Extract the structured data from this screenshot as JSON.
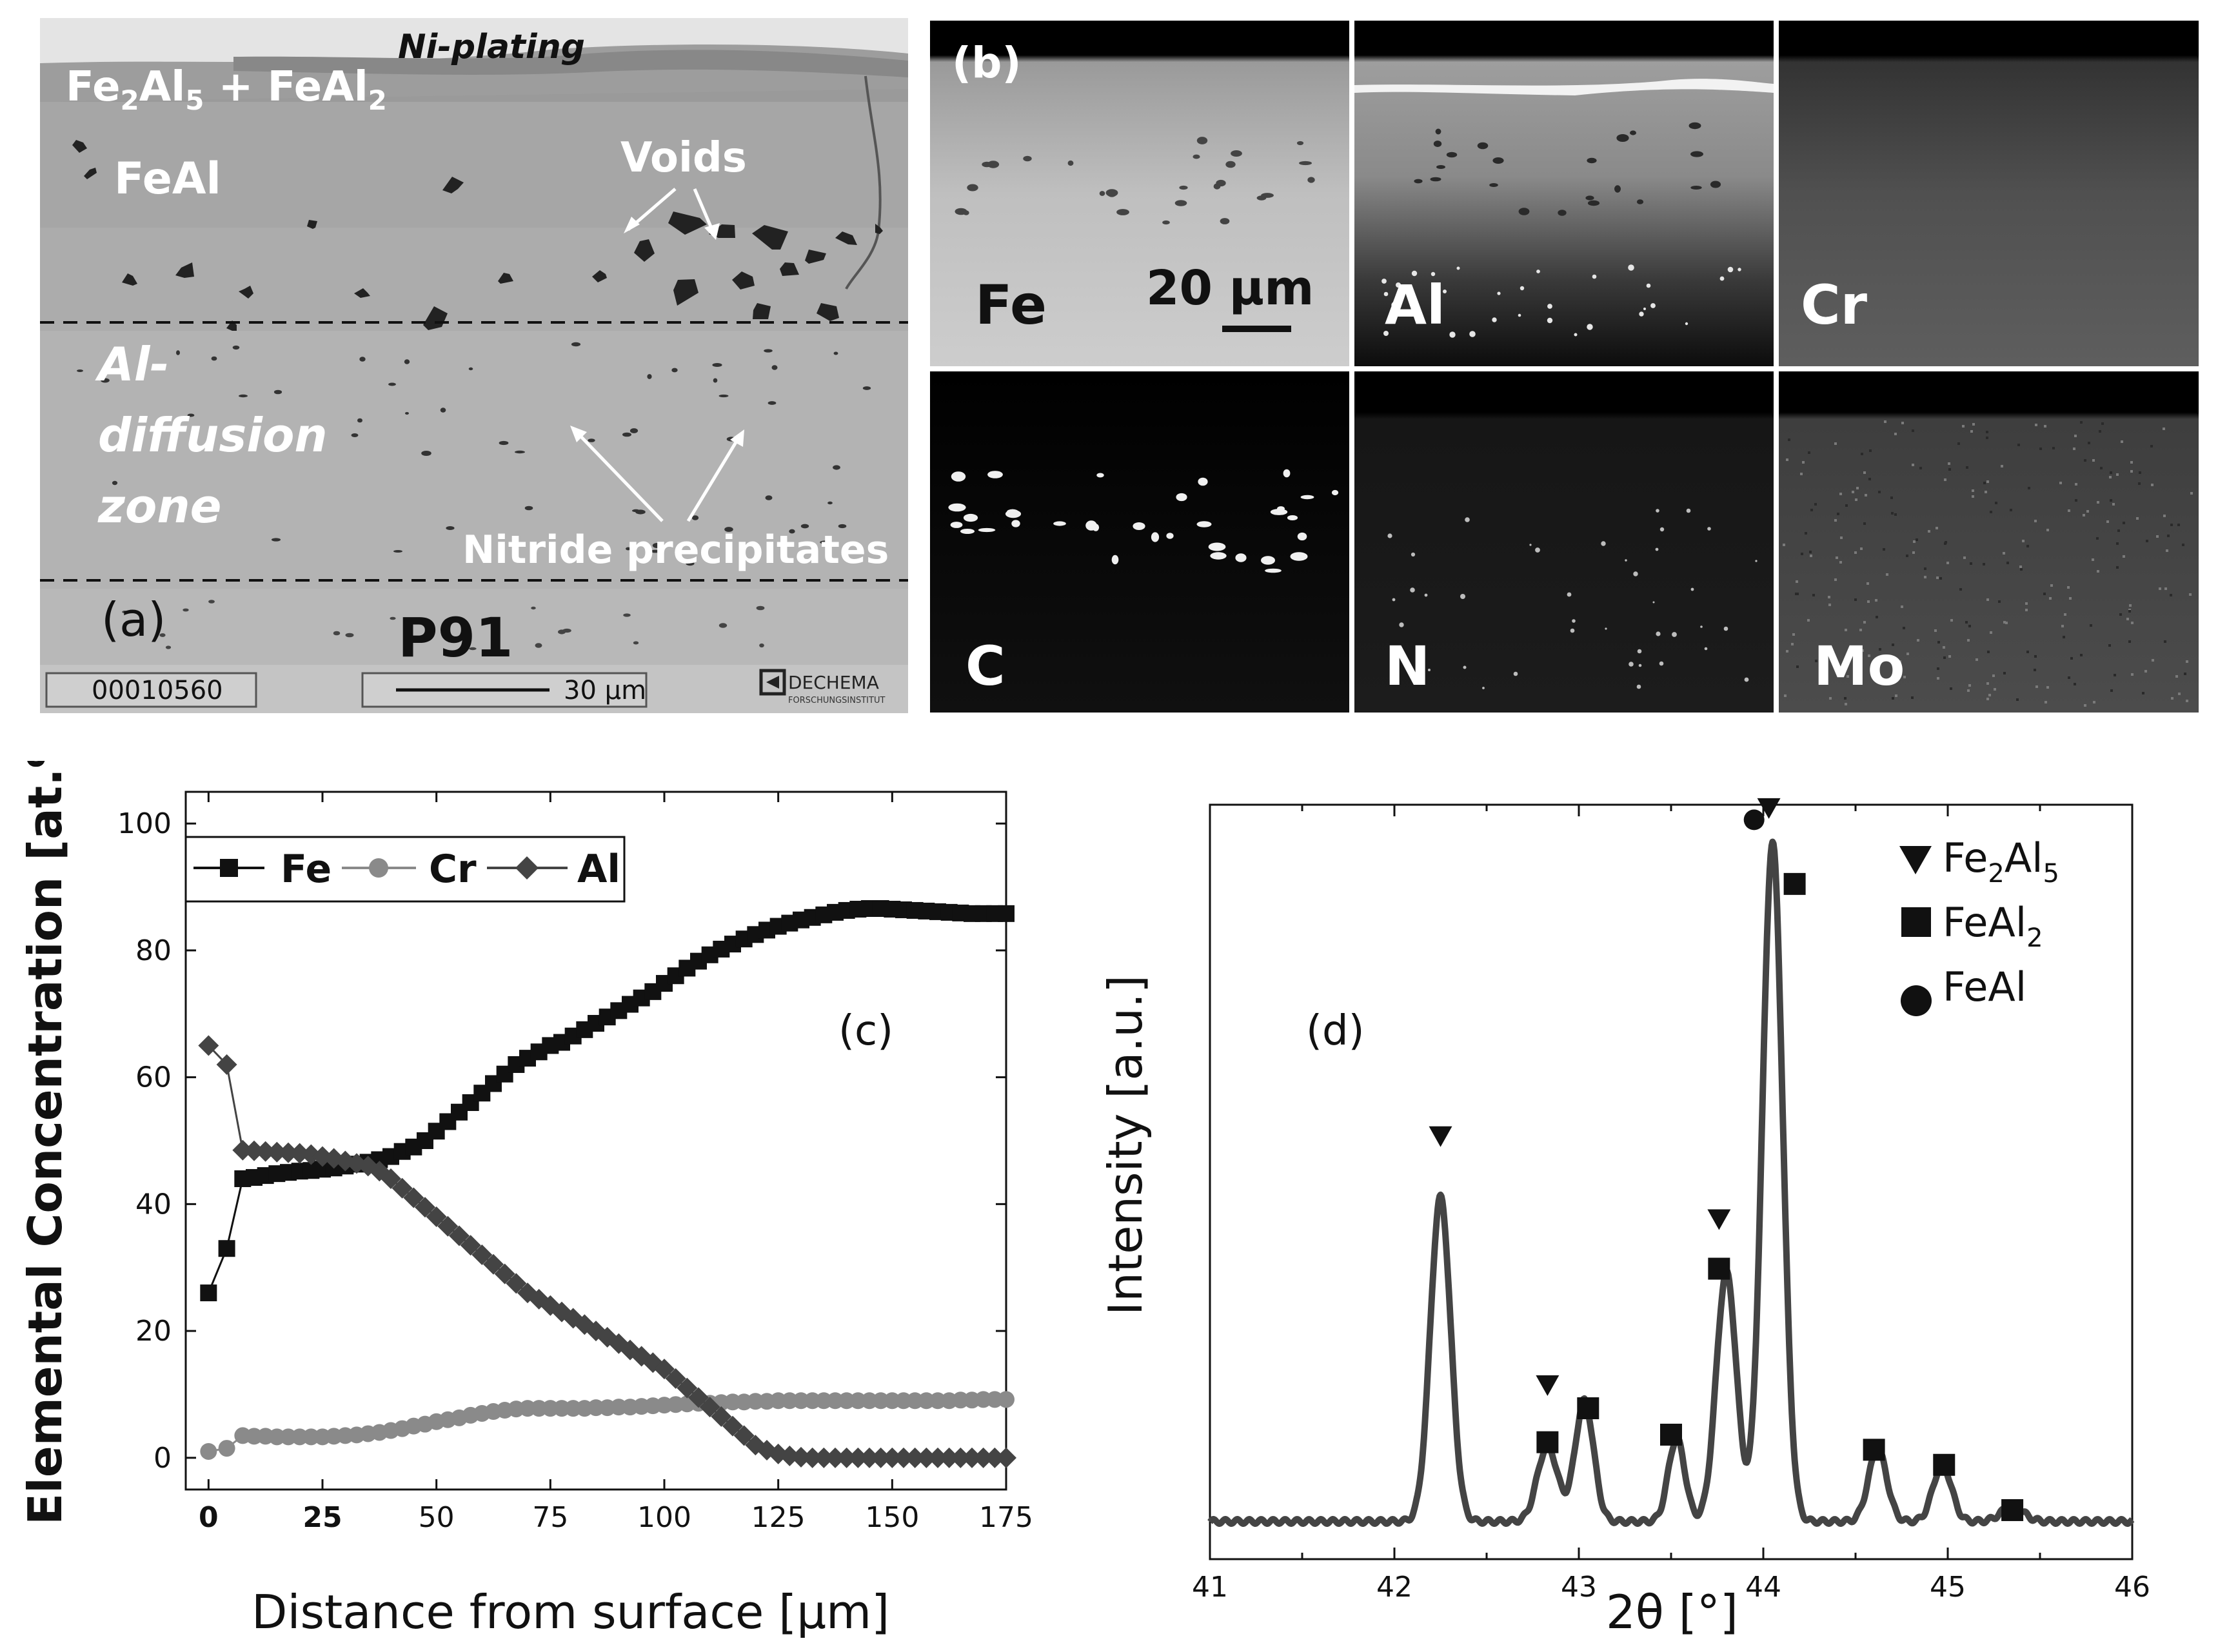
{
  "panel_a": {
    "label": "(a)",
    "ni_plating": "Ni-plating",
    "fe2al5_layer": {
      "t1": "Fe",
      "s1": "2",
      "t2": "Al",
      "s2": "5",
      "t3": " + FeAl",
      "s3": "2"
    },
    "feal": "FeAl",
    "voids": "Voids",
    "al_diffusion": [
      "Al-",
      "diffusion",
      "zone"
    ],
    "nitride": "Nitride precipitates",
    "substrate": "P91",
    "image_id": "00010560",
    "scale_bar": "30 µm",
    "logo_text": "DECHEMA",
    "logo_sub": "FORSCHUNGSINSTITUT"
  },
  "panel_b": {
    "label": "(b)",
    "scale_bar": "20 µm",
    "maps": [
      {
        "element": "Fe"
      },
      {
        "element": "Al"
      },
      {
        "element": "Cr"
      },
      {
        "element": "C"
      },
      {
        "element": "N"
      },
      {
        "element": "Mo"
      }
    ]
  },
  "colors": {
    "fe": "#111111",
    "cr": "#8a8a8a",
    "al": "#444444",
    "xrd_line": "#444444"
  },
  "chart_data": [
    {
      "type": "line",
      "panel": "(c)",
      "xlabel": "Distance from surface [µm]",
      "ylabel": "Elemental Concentration [at.%]",
      "xlim": [
        -5,
        175
      ],
      "ylim": [
        -5,
        105
      ],
      "xticks": [
        0,
        25,
        50,
        75,
        100,
        125,
        150,
        175
      ],
      "yticks": [
        0,
        20,
        40,
        60,
        80,
        100
      ],
      "legend": [
        "Fe",
        "Cr",
        "Al"
      ],
      "series": [
        {
          "name": "Fe",
          "marker": "square",
          "x": [
            0,
            4,
            7.5,
            10,
            12.5,
            15,
            17.5,
            20,
            22.5,
            25,
            27.5,
            30,
            32.5,
            35,
            37.5,
            40,
            42.5,
            45,
            47.5,
            50,
            52.5,
            55,
            57.5,
            60,
            62.5,
            65,
            67.5,
            70,
            72.5,
            75,
            77.5,
            80,
            82.5,
            85,
            87.5,
            90,
            92.5,
            95,
            97.5,
            100,
            102.5,
            105,
            107.5,
            110,
            112.5,
            115,
            117.5,
            120,
            122.5,
            125,
            127.5,
            130,
            132.5,
            135,
            137.5,
            140,
            142.5,
            145,
            147.5,
            150,
            152.5,
            155,
            157.5,
            160,
            162.5,
            165,
            167.5,
            170,
            172.5,
            175
          ],
          "y": [
            26,
            33,
            44,
            44.2,
            44.5,
            44.8,
            45,
            45.2,
            45.3,
            45.5,
            45.7,
            46,
            46.3,
            46.6,
            47,
            47.5,
            48.3,
            49,
            50,
            51.5,
            53,
            54.5,
            56,
            57.5,
            59,
            60.5,
            62,
            63,
            64,
            65,
            65.5,
            66.5,
            67.5,
            68.5,
            69.5,
            70.5,
            71.5,
            72.5,
            73.5,
            74.8,
            76,
            77.2,
            78.3,
            79.3,
            80.2,
            81,
            81.8,
            82.5,
            83.2,
            83.8,
            84.3,
            84.8,
            85.2,
            85.6,
            86,
            86.3,
            86.5,
            86.6,
            86.6,
            86.5,
            86.4,
            86.3,
            86.2,
            86.1,
            86,
            85.9,
            85.8,
            85.8,
            85.8,
            85.8
          ]
        },
        {
          "name": "Cr",
          "marker": "circle",
          "x": [
            0,
            4,
            7.5,
            10,
            12.5,
            15,
            17.5,
            20,
            22.5,
            25,
            27.5,
            30,
            32.5,
            35,
            37.5,
            40,
            42.5,
            45,
            47.5,
            50,
            52.5,
            55,
            57.5,
            60,
            62.5,
            65,
            67.5,
            70,
            72.5,
            75,
            77.5,
            80,
            82.5,
            85,
            87.5,
            90,
            92.5,
            95,
            97.5,
            100,
            102.5,
            105,
            107.5,
            110,
            112.5,
            115,
            117.5,
            120,
            122.5,
            125,
            127.5,
            130,
            132.5,
            135,
            137.5,
            140,
            142.5,
            145,
            147.5,
            150,
            152.5,
            155,
            157.5,
            160,
            162.5,
            165,
            167.5,
            170,
            172.5,
            175
          ],
          "y": [
            1,
            1.5,
            3.5,
            3.4,
            3.4,
            3.3,
            3.3,
            3.3,
            3.3,
            3.3,
            3.4,
            3.5,
            3.6,
            3.8,
            4,
            4.3,
            4.6,
            5,
            5.3,
            5.7,
            6,
            6.3,
            6.7,
            7,
            7.3,
            7.5,
            7.7,
            7.8,
            7.8,
            7.8,
            7.8,
            7.8,
            7.8,
            7.9,
            7.9,
            8,
            8,
            8.1,
            8.2,
            8.3,
            8.4,
            8.5,
            8.6,
            8.6,
            8.7,
            8.8,
            8.8,
            8.9,
            8.9,
            9,
            9,
            9,
            9,
            9,
            9,
            9,
            9,
            9,
            9,
            9,
            9,
            9,
            9,
            9,
            9,
            9.1,
            9.1,
            9.2,
            9.2,
            9.2
          ]
        },
        {
          "name": "Al",
          "marker": "diamond",
          "x": [
            0,
            4,
            7.5,
            10,
            12.5,
            15,
            17.5,
            20,
            22.5,
            25,
            27.5,
            30,
            32.5,
            35,
            37.5,
            40,
            42.5,
            45,
            47.5,
            50,
            52.5,
            55,
            57.5,
            60,
            62.5,
            65,
            67.5,
            70,
            72.5,
            75,
            77.5,
            80,
            82.5,
            85,
            87.5,
            90,
            92.5,
            95,
            97.5,
            100,
            102.5,
            105,
            107.5,
            110,
            112.5,
            115,
            117.5,
            120,
            122.5,
            125,
            127.5,
            130,
            132.5,
            135,
            137.5,
            140,
            142.5,
            145,
            147.5,
            150,
            152.5,
            155,
            157.5,
            160,
            162.5,
            165,
            167.5,
            170,
            172.5,
            175
          ],
          "y": [
            65,
            62,
            48.5,
            48.4,
            48.3,
            48.2,
            48.1,
            48,
            47.8,
            47.5,
            47.2,
            46.8,
            46.4,
            46,
            45.2,
            44,
            42.5,
            41,
            39.5,
            38,
            36.5,
            35,
            33.5,
            32,
            30.5,
            29,
            27.5,
            26,
            25,
            24,
            23,
            22,
            21,
            20,
            19,
            18,
            17,
            16,
            15,
            14,
            12.5,
            11,
            9.5,
            8,
            6.5,
            5,
            3.5,
            2,
            1.2,
            0.6,
            0.3,
            0.1,
            0,
            0,
            0,
            0,
            0,
            0,
            0,
            0,
            0,
            0,
            0,
            0,
            0,
            0,
            0,
            0,
            0,
            0
          ]
        }
      ]
    },
    {
      "type": "line",
      "panel": "(d)",
      "xlabel": "2θ [°]",
      "ylabel": "Intensity [a.u.]",
      "xlim": [
        41,
        46
      ],
      "ylim": [
        0,
        100
      ],
      "xticks": [
        41,
        42,
        43,
        44,
        45,
        46
      ],
      "baseline": 5,
      "peaks": [
        {
          "center": 42.25,
          "height": 43,
          "width": 0.055
        },
        {
          "center": 42.83,
          "height": 10,
          "width": 0.055
        },
        {
          "center": 43.03,
          "height": 16,
          "width": 0.05
        },
        {
          "center": 43.53,
          "height": 11,
          "width": 0.045
        },
        {
          "center": 43.8,
          "height": 33,
          "width": 0.055
        },
        {
          "center": 44.05,
          "height": 90,
          "width": 0.055
        },
        {
          "center": 44.62,
          "height": 9.5,
          "width": 0.05
        },
        {
          "center": 44.97,
          "height": 7.5,
          "width": 0.05
        },
        {
          "center": 45.35,
          "height": 2,
          "width": 0.06
        }
      ],
      "markers": [
        {
          "x": 42.25,
          "y": 56,
          "phase": "Fe2Al5"
        },
        {
          "x": 42.83,
          "y": 23,
          "phase": "Fe2Al5"
        },
        {
          "x": 42.83,
          "y": 15.5,
          "phase": "FeAl2"
        },
        {
          "x": 43.05,
          "y": 20,
          "phase": "FeAl2"
        },
        {
          "x": 43.5,
          "y": 16.5,
          "phase": "FeAl2"
        },
        {
          "x": 43.76,
          "y": 45,
          "phase": "Fe2Al5"
        },
        {
          "x": 43.76,
          "y": 38.5,
          "phase": "FeAl2"
        },
        {
          "x": 43.95,
          "y": 98,
          "phase": "FeAl"
        },
        {
          "x": 44.03,
          "y": 99.5,
          "phase": "Fe2Al5"
        },
        {
          "x": 44.17,
          "y": 89.5,
          "phase": "FeAl2"
        },
        {
          "x": 44.6,
          "y": 14.5,
          "phase": "FeAl2"
        },
        {
          "x": 44.98,
          "y": 12.5,
          "phase": "FeAl2"
        },
        {
          "x": 45.35,
          "y": 6.5,
          "phase": "FeAl2"
        }
      ],
      "legend": [
        {
          "symbol": "triangle",
          "t": "Fe",
          "s1": "2",
          "t2": "Al",
          "s2": "5"
        },
        {
          "symbol": "square",
          "t": "FeAl",
          "s1": "2",
          "t2": "",
          "s2": ""
        },
        {
          "symbol": "circle",
          "t": "FeAl",
          "s1": "",
          "t2": "",
          "s2": ""
        }
      ]
    }
  ]
}
